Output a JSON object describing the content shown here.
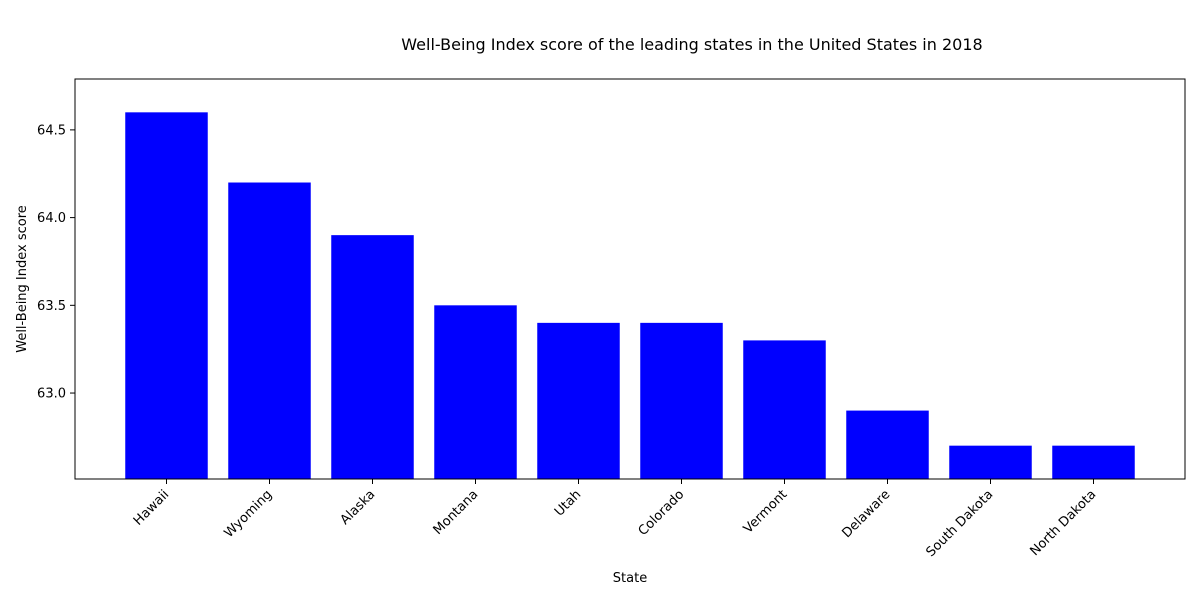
{
  "chart_data": {
    "type": "bar",
    "title": "Well-Being Index score of the leading states in the United States in 2018",
    "xlabel": "State",
    "ylabel": "Well-Being Index score",
    "categories": [
      "Hawaii",
      "Wyoming",
      "Alaska",
      "Montana",
      "Utah",
      "Colorado",
      "Vermont",
      "Delaware",
      "South Dakota",
      "North Dakota"
    ],
    "values": [
      64.6,
      64.2,
      63.9,
      63.5,
      63.4,
      63.4,
      63.3,
      62.9,
      62.7,
      62.7
    ],
    "ylim": [
      62.51,
      64.79
    ],
    "yticks": [
      63.0,
      63.5,
      64.0,
      64.5
    ],
    "ytick_labels": [
      "63.0",
      "63.5",
      "64.0",
      "64.5"
    ],
    "bar_color": "#0000ff",
    "grid": false
  }
}
